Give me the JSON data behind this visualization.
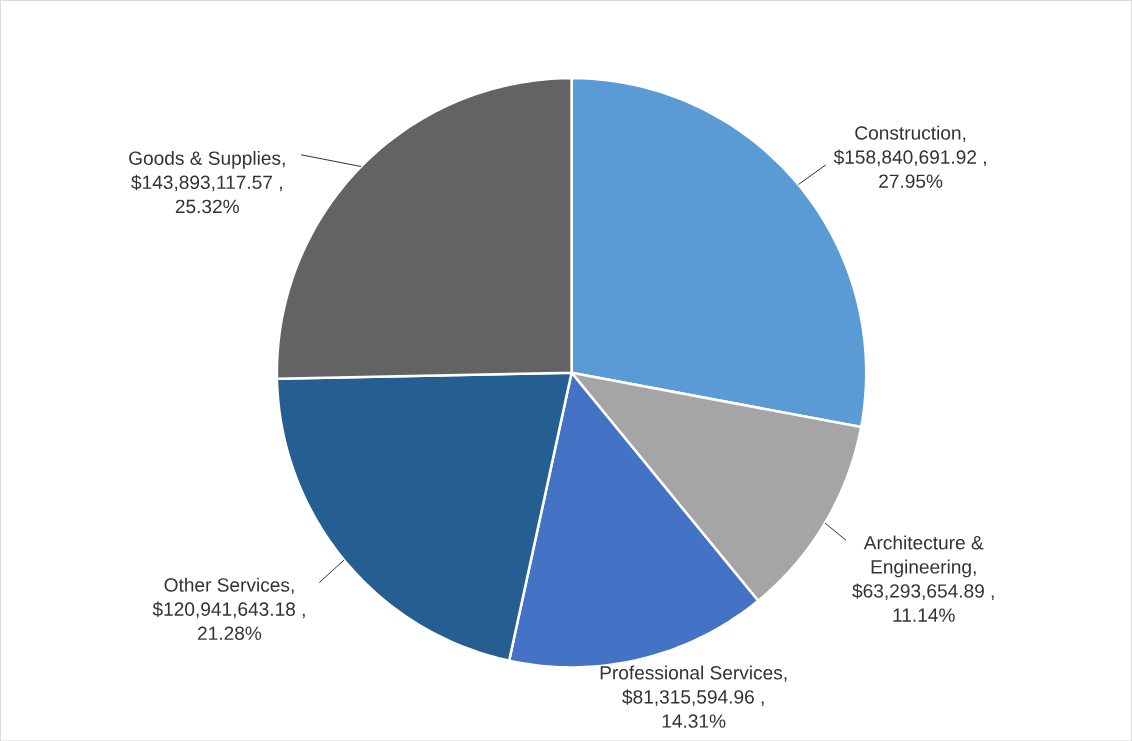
{
  "chart_data": {
    "type": "pie",
    "categories": [
      "Construction",
      "Architecture & Engineering",
      "Professional Services",
      "Other Services",
      "Goods & Supplies"
    ],
    "values": [
      158840691.92,
      63293654.89,
      81315594.96,
      120941643.18,
      143893117.57
    ],
    "value_labels": [
      ", $158,840,691.92 , 27.95%",
      ", $63,293,654.89 , 11.14%",
      ", $81,315,594.96 , 14.31%",
      ", $120,941,643.18 , 21.28%",
      ", $143,893,117.57 , 25.32%"
    ],
    "colors": [
      "#5b9bd5",
      "#a5a5a5",
      "#4472c4",
      "#255e91",
      "#636363"
    ]
  }
}
